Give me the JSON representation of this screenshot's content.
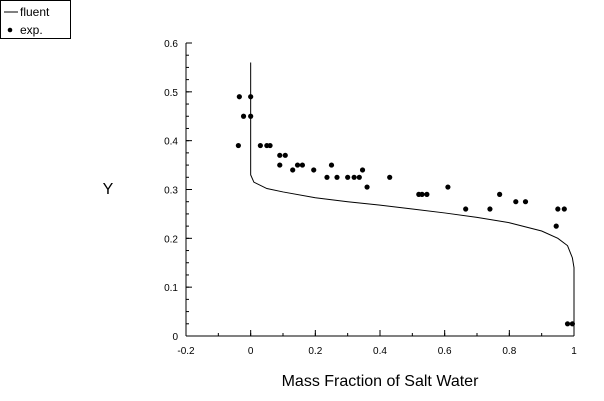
{
  "chart_data": {
    "type": "line+scatter",
    "title": "",
    "xlabel": "Mass Fraction of Salt Water",
    "ylabel": "Y",
    "xlim": [
      -0.2,
      1
    ],
    "ylim": [
      0,
      0.6
    ],
    "xticks": [
      -0.2,
      0,
      0.2,
      0.4,
      0.6,
      0.8,
      1
    ],
    "xtick_labels": [
      "-0.2",
      "0",
      "0.2",
      "0.4",
      "0.6",
      "0.8",
      "1"
    ],
    "yticks": [
      0,
      0.1,
      0.2,
      0.3,
      0.4,
      0.5,
      0.6
    ],
    "ytick_labels": [
      "0",
      "0.1",
      "0.2",
      "0.3",
      "0.4",
      "0.5",
      "0.6"
    ],
    "grid": false,
    "legend_placement": "top-left",
    "series": [
      {
        "name": "fluent",
        "type": "line",
        "color": "#000000",
        "points": [
          [
            0,
            0.56
          ],
          [
            0,
            0.33
          ],
          [
            0.01,
            0.315
          ],
          [
            0.05,
            0.302
          ],
          [
            0.1,
            0.295
          ],
          [
            0.2,
            0.283
          ],
          [
            0.3,
            0.275
          ],
          [
            0.4,
            0.268
          ],
          [
            0.5,
            0.26
          ],
          [
            0.6,
            0.252
          ],
          [
            0.7,
            0.243
          ],
          [
            0.8,
            0.232
          ],
          [
            0.9,
            0.215
          ],
          [
            0.95,
            0.2
          ],
          [
            0.98,
            0.185
          ],
          [
            0.995,
            0.16
          ],
          [
            1,
            0.14
          ],
          [
            1,
            0
          ]
        ]
      },
      {
        "name": "exp.",
        "type": "scatter",
        "color": "#000000",
        "points": [
          [
            -0.038,
            0.39
          ],
          [
            -0.035,
            0.49
          ],
          [
            -0.022,
            0.45
          ],
          [
            0,
            0.49
          ],
          [
            0,
            0.45
          ],
          [
            0.03,
            0.39
          ],
          [
            0.05,
            0.39
          ],
          [
            0.06,
            0.39
          ],
          [
            0.09,
            0.37
          ],
          [
            0.107,
            0.37
          ],
          [
            0.09,
            0.35
          ],
          [
            0.13,
            0.34
          ],
          [
            0.145,
            0.35
          ],
          [
            0.16,
            0.35
          ],
          [
            0.195,
            0.34
          ],
          [
            0.236,
            0.325
          ],
          [
            0.25,
            0.35
          ],
          [
            0.267,
            0.325
          ],
          [
            0.3,
            0.325
          ],
          [
            0.32,
            0.325
          ],
          [
            0.336,
            0.325
          ],
          [
            0.346,
            0.34
          ],
          [
            0.36,
            0.305
          ],
          [
            0.43,
            0.325
          ],
          [
            0.52,
            0.29
          ],
          [
            0.53,
            0.29
          ],
          [
            0.545,
            0.29
          ],
          [
            0.61,
            0.305
          ],
          [
            0.665,
            0.26
          ],
          [
            0.74,
            0.26
          ],
          [
            0.77,
            0.29
          ],
          [
            0.82,
            0.275
          ],
          [
            0.85,
            0.275
          ],
          [
            0.945,
            0.225
          ],
          [
            0.95,
            0.26
          ],
          [
            0.97,
            0.26
          ],
          [
            0.98,
            0.025
          ],
          [
            0.995,
            0.025
          ]
        ]
      }
    ]
  }
}
